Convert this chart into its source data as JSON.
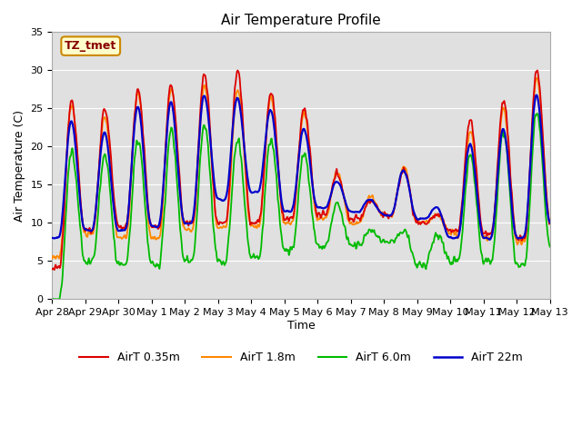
{
  "title": "Air Temperature Profile",
  "xlabel": "Time",
  "ylabel": "Air Temperature (C)",
  "ylim": [
    0,
    35
  ],
  "annotation": "TZ_tmet",
  "annotation_color": "#880000",
  "annotation_bg": "#ffffcc",
  "annotation_border": "#cc8800",
  "bg_color": "#e0e0e0",
  "line_colors": {
    "AirT 0.35m": "#dd0000",
    "AirT 1.8m": "#ff8800",
    "AirT 6.0m": "#00bb00",
    "AirT 22m": "#0000cc"
  },
  "line_widths": {
    "AirT 0.35m": 1.3,
    "AirT 1.8m": 1.3,
    "AirT 6.0m": 1.3,
    "AirT 22m": 1.6
  },
  "x_tick_labels": [
    "Apr 28",
    "Apr 29",
    "Apr 30",
    "May 1",
    "May 2",
    "May 3",
    "May 4",
    "May 5",
    "May 6",
    "May 7",
    "May 8",
    "May 9",
    "May 10",
    "May 11",
    "May 12",
    "May 13"
  ],
  "legend_entries": [
    "AirT 0.35m",
    "AirT 1.8m",
    "AirT 6.0m",
    "AirT 22m"
  ]
}
